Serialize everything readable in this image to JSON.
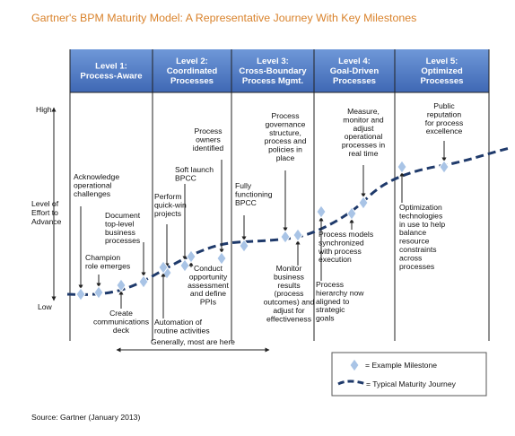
{
  "title": "Gartner's BPM Maturity Model: A Representative Journey With Key Milestones",
  "levels": [
    {
      "lines": [
        "Level 1:",
        "Process-Aware"
      ]
    },
    {
      "lines": [
        "Level 2:",
        "Coordinated",
        "Processes"
      ]
    },
    {
      "lines": [
        "Level 3:",
        "Cross-Boundary",
        "Process Mgmt."
      ]
    },
    {
      "lines": [
        "Level 4:",
        "Goal-Driven",
        "Processes"
      ]
    },
    {
      "lines": [
        "Level 5:",
        "Optimized",
        "Processes"
      ]
    }
  ],
  "axis": {
    "high": "High",
    "low": "Low",
    "label": [
      "Level of",
      "Effort to",
      "Advance"
    ]
  },
  "milestones": [
    {
      "lines": [
        "Acknowledge",
        "operational",
        "challenges"
      ]
    },
    {
      "lines": [
        "Champion",
        "role emerges"
      ]
    },
    {
      "lines": [
        "Document",
        "top-level",
        "business",
        "processes"
      ]
    },
    {
      "lines": [
        "Create",
        "communications",
        "deck"
      ]
    },
    {
      "lines": [
        "Perform",
        "quick-win",
        "projects"
      ]
    },
    {
      "lines": [
        "Soft launch",
        "BPCC"
      ]
    },
    {
      "lines": [
        "Process",
        "owners",
        "identified"
      ]
    },
    {
      "lines": [
        "Conduct",
        "opportunity",
        "assessment",
        "and define",
        "PPIs"
      ]
    },
    {
      "lines": [
        "Automation of",
        "routine activities"
      ]
    },
    {
      "lines": [
        "Fully",
        "functioning",
        "BPCC"
      ]
    },
    {
      "lines": [
        "Process",
        "governance",
        "structure,",
        "process and",
        "policies in",
        "place"
      ]
    },
    {
      "lines": [
        "Monitor",
        "business",
        "results",
        "(process",
        "outcomes) and",
        "adjust for",
        "effectiveness"
      ]
    },
    {
      "lines": [
        "Measure,",
        "monitor and",
        "adjust",
        "operational",
        "processes in",
        "real time"
      ]
    },
    {
      "lines": [
        "Process models",
        "synchronized",
        "with process",
        "execution"
      ]
    },
    {
      "lines": [
        "Process",
        "hierarchy now",
        "aligned to",
        "strategic",
        "goals"
      ]
    },
    {
      "lines": [
        "Public",
        "reputation",
        "for process",
        "excellence"
      ]
    },
    {
      "lines": [
        "Optimization",
        "technologies",
        "in use to help",
        "balance",
        "resource",
        "constraints",
        "across",
        "processes"
      ]
    }
  ],
  "range_note": "Generally, most are here",
  "legend": {
    "milestone": "= Example Milestone",
    "journey": "= Typical Maturity Journey"
  },
  "source": "Source: Gartner (January 2013)"
}
